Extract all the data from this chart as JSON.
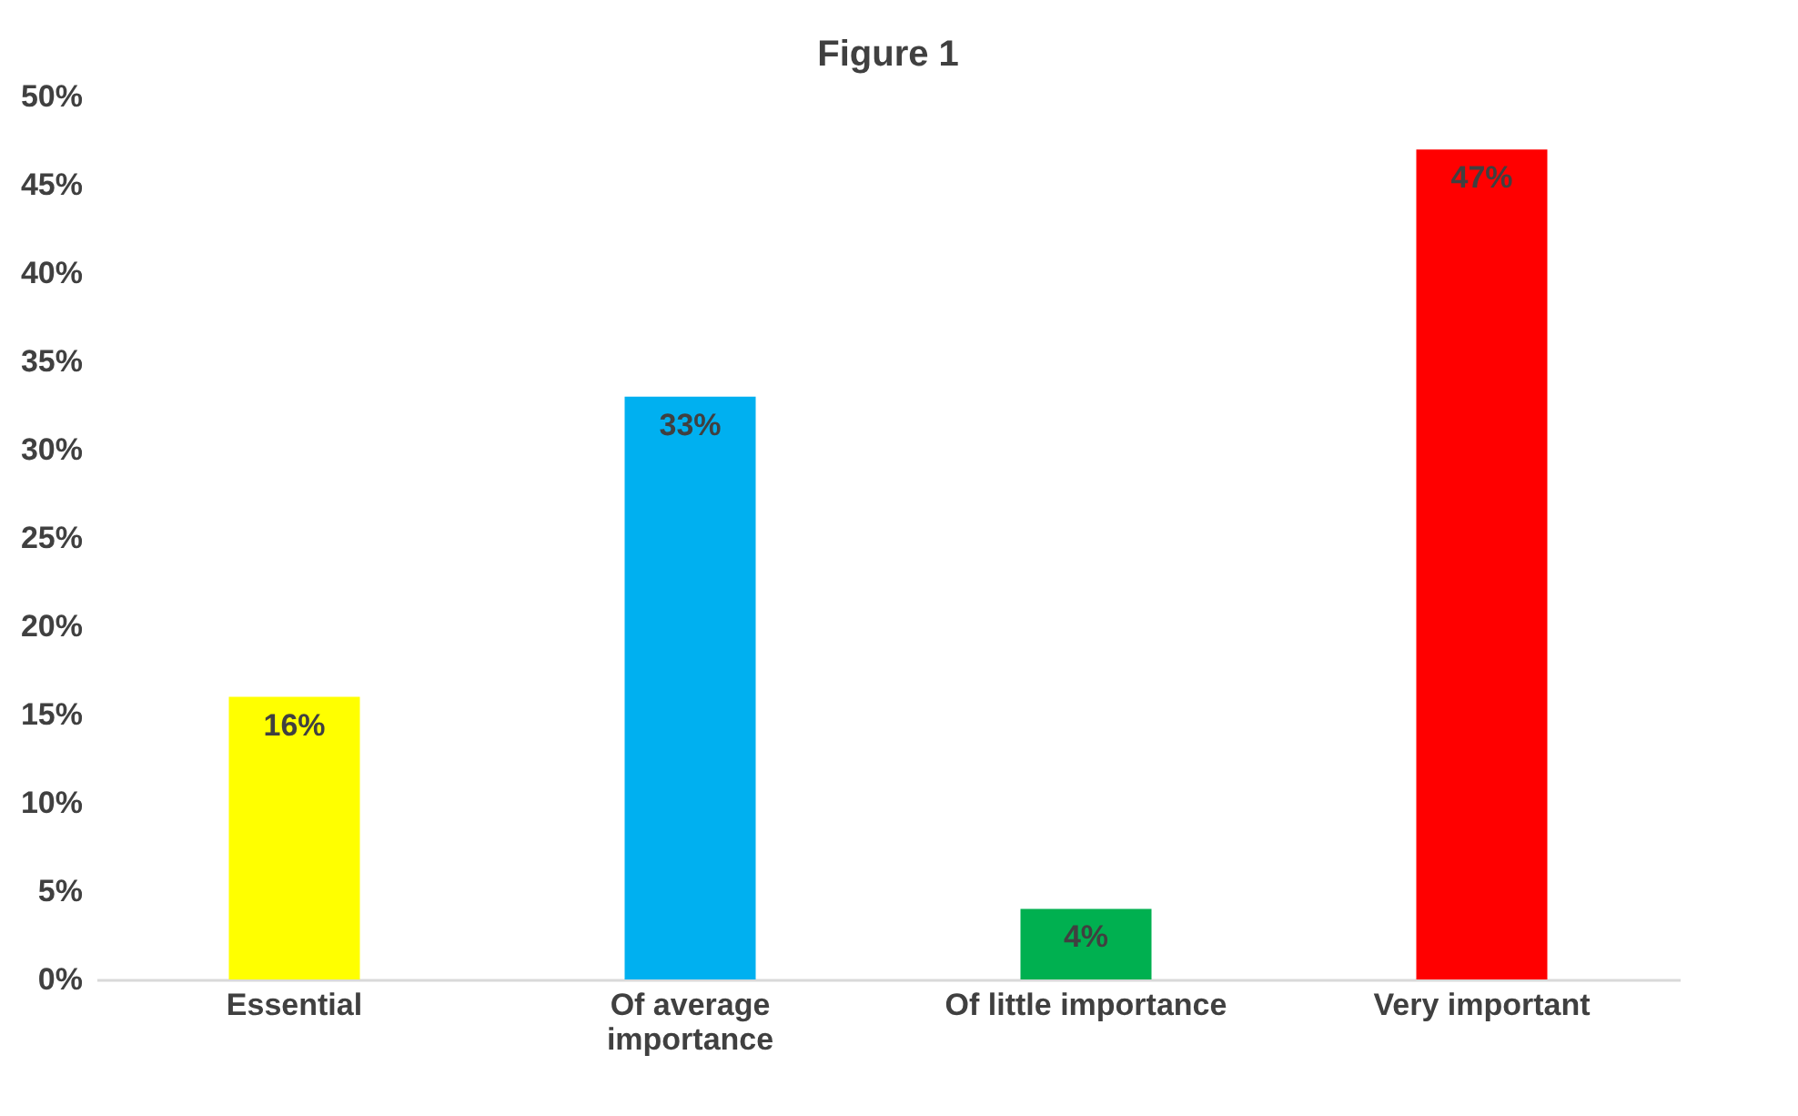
{
  "chart_data": {
    "type": "bar",
    "title": "Figure 1",
    "categories": [
      "Essential",
      "Of average importance",
      "Of little importance",
      "Very important"
    ],
    "values": [
      16,
      33,
      4,
      47
    ],
    "colors": [
      "#ffff00",
      "#00b0f0",
      "#00b050",
      "#ff0000"
    ],
    "ylim": [
      0,
      50
    ],
    "yticks": [
      {
        "value": 0,
        "label": "0%"
      },
      {
        "value": 5,
        "label": "5%"
      },
      {
        "value": 10,
        "label": "10%"
      },
      {
        "value": 15,
        "label": "15%"
      },
      {
        "value": 20,
        "label": "20%"
      },
      {
        "value": 25,
        "label": "25%"
      },
      {
        "value": 30,
        "label": "30%"
      },
      {
        "value": 35,
        "label": "35%"
      },
      {
        "value": 40,
        "label": "40%"
      },
      {
        "value": 45,
        "label": "45%"
      },
      {
        "value": 50,
        "label": "50%"
      }
    ],
    "value_labels": [
      "16%",
      "33%",
      "4%",
      "47%"
    ],
    "grid": false
  }
}
